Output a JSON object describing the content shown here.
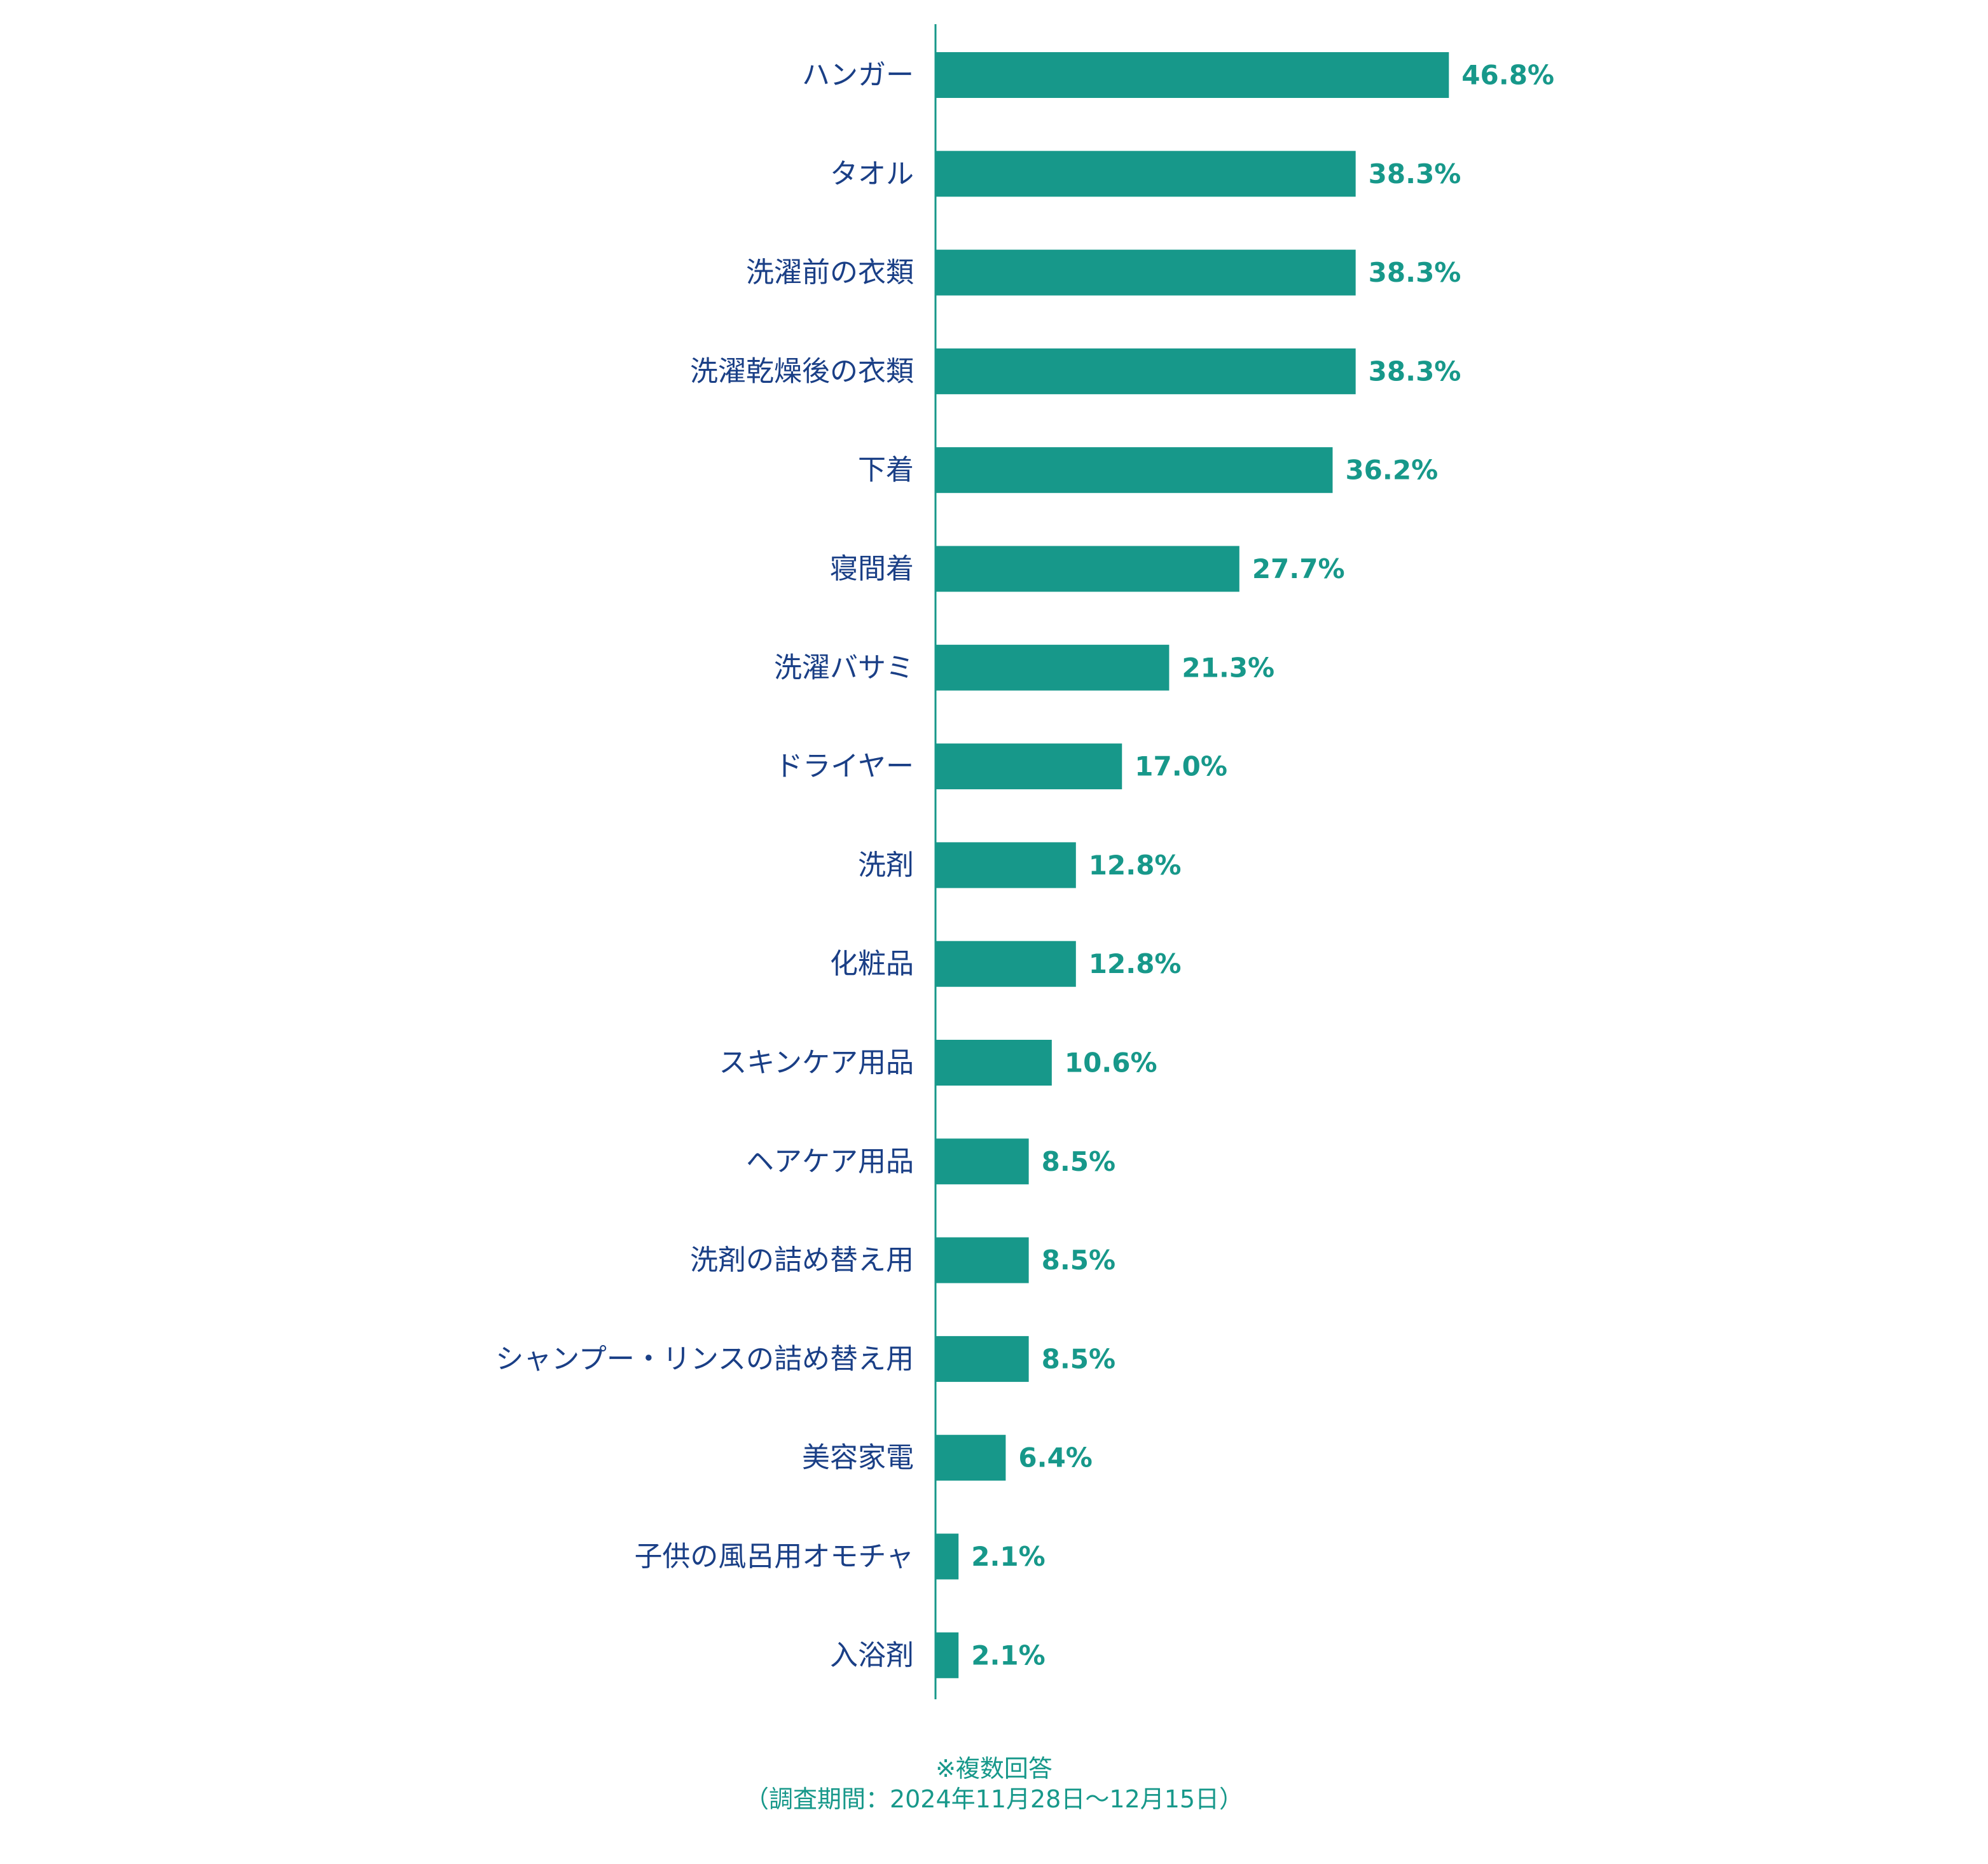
{
  "chart_data": {
    "type": "bar",
    "orientation": "horizontal",
    "categories": [
      "ハンガー",
      "タオル",
      "洗濯前の衣類",
      "洗濯乾燥後の衣類",
      "下着",
      "寝間着",
      "洗濯バサミ",
      "ドライヤー",
      "洗剤",
      "化粧品",
      "スキンケア用品",
      "ヘアケア用品",
      "洗剤の詰め替え用",
      "シャンプー・リンスの詰め替え用",
      "美容家電",
      "子供の風呂用オモチャ",
      "入浴剤"
    ],
    "values": [
      46.8,
      38.3,
      38.3,
      38.3,
      36.2,
      27.7,
      21.3,
      17.0,
      12.8,
      12.8,
      10.6,
      8.5,
      8.5,
      8.5,
      6.4,
      2.1,
      2.1
    ],
    "value_labels": [
      "46.8%",
      "38.3%",
      "38.3%",
      "38.3%",
      "36.2%",
      "27.7%",
      "21.3%",
      "17.0%",
      "12.8%",
      "12.8%",
      "10.6%",
      "8.5%",
      "8.5%",
      "8.5%",
      "6.4%",
      "2.1%",
      "2.1%"
    ],
    "unit": "%",
    "xlim": [
      0,
      100
    ],
    "grid": false,
    "legend": "none",
    "colors": {
      "bar": "#17988a",
      "axis": "#17988a",
      "category_text": "#1a3f86",
      "value_text": "#17988a"
    }
  },
  "footnote": {
    "line1": "※複数回答",
    "line2": "（調査期間：2024年11月28日～12月15日）"
  }
}
